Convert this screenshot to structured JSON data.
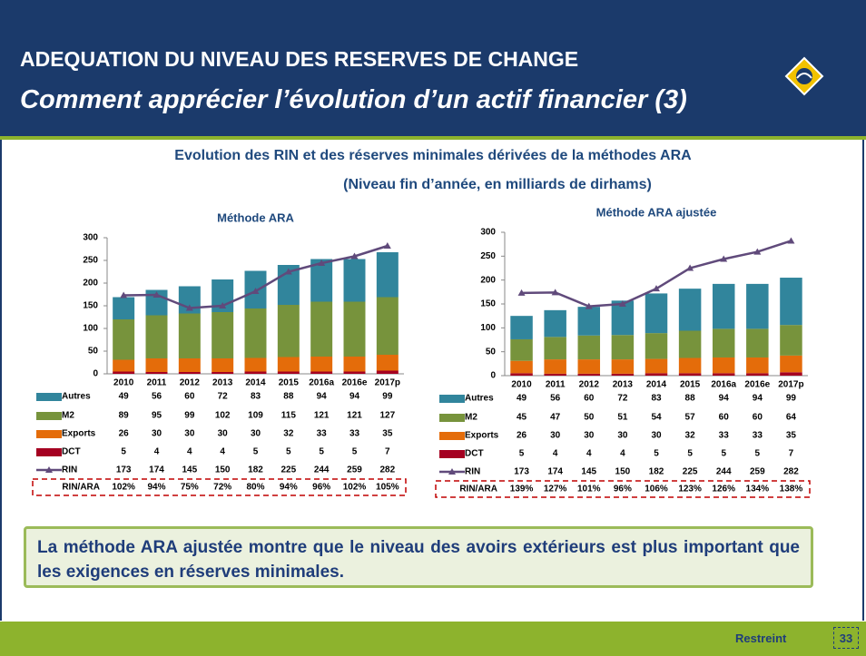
{
  "header": {
    "title": "ADEQUATION DU NIVEAU DES RESERVES DE CHANGE",
    "subtitle": "Comment apprécier l’évolution d’un actif financier (3)"
  },
  "heading": [
    "Evolution des RIN et des réserves minimales dérivées de la méthodes ARA",
    "(Niveau fin d’année, en milliards de dirhams)"
  ],
  "chart_data": [
    {
      "type": "bar",
      "stacked": true,
      "title": "Méthode ARA",
      "categories": [
        "2010",
        "2011",
        "2012",
        "2013",
        "2014",
        "2015",
        "2016a",
        "2016e",
        "2017p"
      ],
      "ylim": [
        0,
        300
      ],
      "yticks": [
        0,
        50,
        100,
        150,
        200,
        250,
        300
      ],
      "series": [
        {
          "name": "Autres",
          "color": "#31859c",
          "values": [
            49,
            56,
            60,
            72,
            83,
            88,
            94,
            94,
            99
          ]
        },
        {
          "name": "M2",
          "color": "#77933c",
          "values": [
            89,
            95,
            99,
            102,
            109,
            115,
            121,
            121,
            127
          ]
        },
        {
          "name": "Exports",
          "color": "#e46c0a",
          "values": [
            26,
            30,
            30,
            30,
            30,
            32,
            33,
            33,
            35
          ]
        },
        {
          "name": "DCT",
          "color": "#a50021",
          "values": [
            5,
            4,
            4,
            4,
            5,
            5,
            5,
            5,
            7
          ]
        },
        {
          "name": "RIN",
          "type": "line",
          "color": "#604a7b",
          "values": [
            173,
            174,
            145,
            150,
            182,
            225,
            244,
            259,
            282
          ]
        }
      ],
      "ratio": {
        "name": "RIN/ARA",
        "values": [
          102,
          94,
          75,
          72,
          80,
          94,
          96,
          102,
          105
        ],
        "value_labels": [
          "102%",
          "94%",
          "75%",
          "72%",
          "80%",
          "94%",
          "96%",
          "102%",
          "105%"
        ]
      }
    },
    {
      "type": "bar",
      "stacked": true,
      "title": "Méthode ARA ajustée",
      "categories": [
        "2010",
        "2011",
        "2012",
        "2013",
        "2014",
        "2015",
        "2016a",
        "2016e",
        "2017p"
      ],
      "ylim": [
        0,
        300
      ],
      "yticks": [
        0,
        50,
        100,
        150,
        200,
        250,
        300
      ],
      "series": [
        {
          "name": "Autres",
          "color": "#31859c",
          "values": [
            49,
            56,
            60,
            72,
            83,
            88,
            94,
            94,
            99
          ]
        },
        {
          "name": "M2",
          "color": "#77933c",
          "values": [
            45,
            47,
            50,
            51,
            54,
            57,
            60,
            60,
            64
          ]
        },
        {
          "name": "Exports",
          "color": "#e46c0a",
          "values": [
            26,
            30,
            30,
            30,
            30,
            32,
            33,
            33,
            35
          ]
        },
        {
          "name": "DCT",
          "color": "#a50021",
          "values": [
            5,
            4,
            4,
            4,
            5,
            5,
            5,
            5,
            7
          ]
        },
        {
          "name": "RIN",
          "type": "line",
          "color": "#604a7b",
          "values": [
            173,
            174,
            145,
            150,
            182,
            225,
            244,
            259,
            282
          ]
        }
      ],
      "ratio": {
        "name": "RIN/ARA",
        "values": [
          139,
          127,
          101,
          96,
          106,
          123,
          126,
          134,
          138
        ],
        "value_labels": [
          "139%",
          "127%",
          "101%",
          "96%",
          "106%",
          "123%",
          "126%",
          "134%",
          "138%"
        ]
      }
    }
  ],
  "conclusion": "La méthode ARA ajustée montre que le niveau des avoirs extérieurs est plus important que les exigences en réserves minimales.",
  "footer": {
    "classification": "Restreint",
    "page": "33"
  }
}
